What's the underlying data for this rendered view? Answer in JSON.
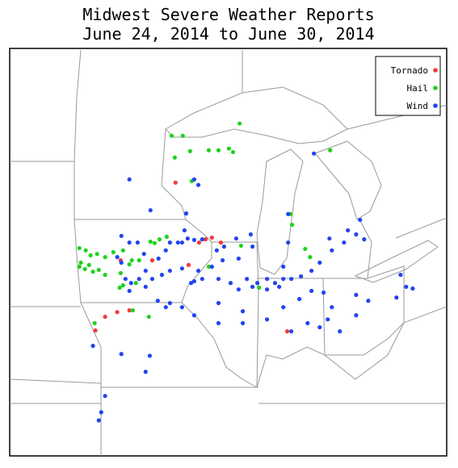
{
  "chart_data": {
    "type": "scatter",
    "title": "Midwest Severe Weather Reports",
    "subtitle": "June 24, 2014 to June 30, 2014",
    "xlim": [
      -98.6,
      -80.6
    ],
    "ylim": [
      35.6,
      49.6
    ],
    "legend": "upper right",
    "series": [
      {
        "name": "Tornado",
        "color": "#f03a3a",
        "x": [
          -91.77,
          -90.53,
          -89.9,
          -90.27,
          -92.73,
          -91.23,
          -94.67,
          -94.17,
          -93.67,
          -95.07,
          -87.17,
          -94.03,
          -90.8
        ],
        "y": [
          44.99,
          43.04,
          42.93,
          43.1,
          42.32,
          42.16,
          40.38,
          40.54,
          40.6,
          39.91,
          39.88,
          42.32,
          42.93
        ]
      },
      {
        "name": "Hail",
        "color": "#1ed21e",
        "x": [
          -91.93,
          -91.47,
          -91.17,
          -90.4,
          -90.0,
          -89.57,
          -89.4,
          -89.13,
          -85.4,
          -91.8,
          -91.1,
          -86.97,
          -87.03,
          -89.07,
          -86.43,
          -86.23,
          -92.63,
          -92.8,
          -92.43,
          -92.13,
          -95.73,
          -95.47,
          -95.27,
          -95.0,
          -94.67,
          -94.33,
          -93.93,
          -93.57,
          -93.27,
          -95.73,
          -95.5,
          -95.17,
          -94.93,
          -95.33,
          -94.67,
          -94.03,
          -93.93,
          -93.4,
          -94.07,
          -92.87,
          -93.53,
          -93.67,
          -88.33,
          -90.4,
          -95.1,
          -95.67
        ],
        "y": [
          46.6,
          46.6,
          46.07,
          46.1,
          46.1,
          46.16,
          46.04,
          47.02,
          46.1,
          45.85,
          45.04,
          43.54,
          43.91,
          42.82,
          42.71,
          42.43,
          42.91,
          42.96,
          43.04,
          43.13,
          42.74,
          42.66,
          42.49,
          42.54,
          42.43,
          42.6,
          42.66,
          42.32,
          42.32,
          42.1,
          42.02,
          41.93,
          41.99,
          42.16,
          41.82,
          41.88,
          41.46,
          41.54,
          41.38,
          40.38,
          40.6,
          42.18,
          41.38,
          42.1,
          40.16,
          42.24
        ]
      },
      {
        "name": "Wind",
        "color": "#2244ee",
        "x": [
          -93.67,
          -92.8,
          -91.0,
          -90.83,
          -91.33,
          -91.4,
          -94.0,
          -93.67,
          -93.33,
          -94.17,
          -94.0,
          -93.07,
          -92.47,
          -92.17,
          -92.0,
          -91.67,
          -91.27,
          -91.0,
          -90.67,
          -90.07,
          -89.77,
          -89.27,
          -88.67,
          -88.6,
          -89.17,
          -89.83,
          -90.27,
          -90.83,
          -91.5,
          -92.0,
          -92.33,
          -92.73,
          -93.0,
          -93.27,
          -93.6,
          -91.13,
          -90.67,
          -90.0,
          -89.5,
          -88.83,
          -88.6,
          -88.4,
          -88.0,
          -87.67,
          -87.33,
          -87.0,
          -86.6,
          -86.17,
          -85.83,
          -85.33,
          -84.83,
          -84.33,
          -84.0,
          -84.17,
          -84.67,
          -85.43,
          -86.07,
          -87.13,
          -87.13,
          -87.33,
          -87.5,
          -88.0,
          -89.17,
          -90.0,
          -89.0,
          -88.0,
          -87.33,
          -86.67,
          -86.17,
          -85.67,
          -85.33,
          -85.83,
          -85.5,
          -84.33,
          -83.83,
          -82.67,
          -82.27,
          -82.0,
          -82.5,
          -84.33,
          -85.0,
          -86.33,
          -87.0,
          -90.0,
          -91.0,
          -91.5,
          -92.0,
          -92.5,
          -93.67,
          -93.83,
          -93.0,
          -92.83,
          -93.0,
          -94.67,
          -94.83,
          -94.93,
          -94.0,
          -95.17,
          -89.0,
          -91.0,
          -91.5,
          -92.17
        ],
        "y": [
          45.1,
          44.04,
          45.1,
          44.91,
          43.93,
          43.35,
          43.16,
          42.93,
          42.93,
          42.43,
          42.24,
          42.54,
          42.38,
          42.66,
          42.93,
          42.93,
          43.07,
          43.02,
          43.04,
          42.66,
          42.79,
          43.07,
          43.21,
          42.79,
          42.38,
          42.32,
          42.1,
          41.96,
          42.04,
          41.96,
          41.82,
          41.68,
          41.96,
          41.68,
          41.54,
          41.54,
          41.68,
          41.68,
          41.54,
          41.68,
          41.41,
          41.54,
          41.68,
          41.54,
          41.68,
          41.68,
          41.77,
          41.96,
          42.24,
          42.66,
          42.93,
          43.21,
          43.04,
          43.71,
          43.35,
          43.07,
          45.99,
          43.91,
          42.93,
          42.1,
          41.41,
          41.32,
          41.32,
          40.85,
          40.57,
          40.29,
          40.71,
          40.99,
          41.27,
          41.21,
          40.71,
          40.02,
          40.29,
          41.13,
          40.93,
          41.04,
          41.41,
          41.35,
          41.82,
          40.43,
          39.88,
          40.16,
          39.88,
          40.16,
          40.43,
          40.71,
          40.85,
          40.93,
          41.27,
          41.68,
          41.41,
          39.04,
          38.49,
          37.66,
          37.1,
          36.82,
          39.1,
          39.38,
          40.16,
          41.6,
          42.93,
          40.71
        ]
      }
    ]
  }
}
